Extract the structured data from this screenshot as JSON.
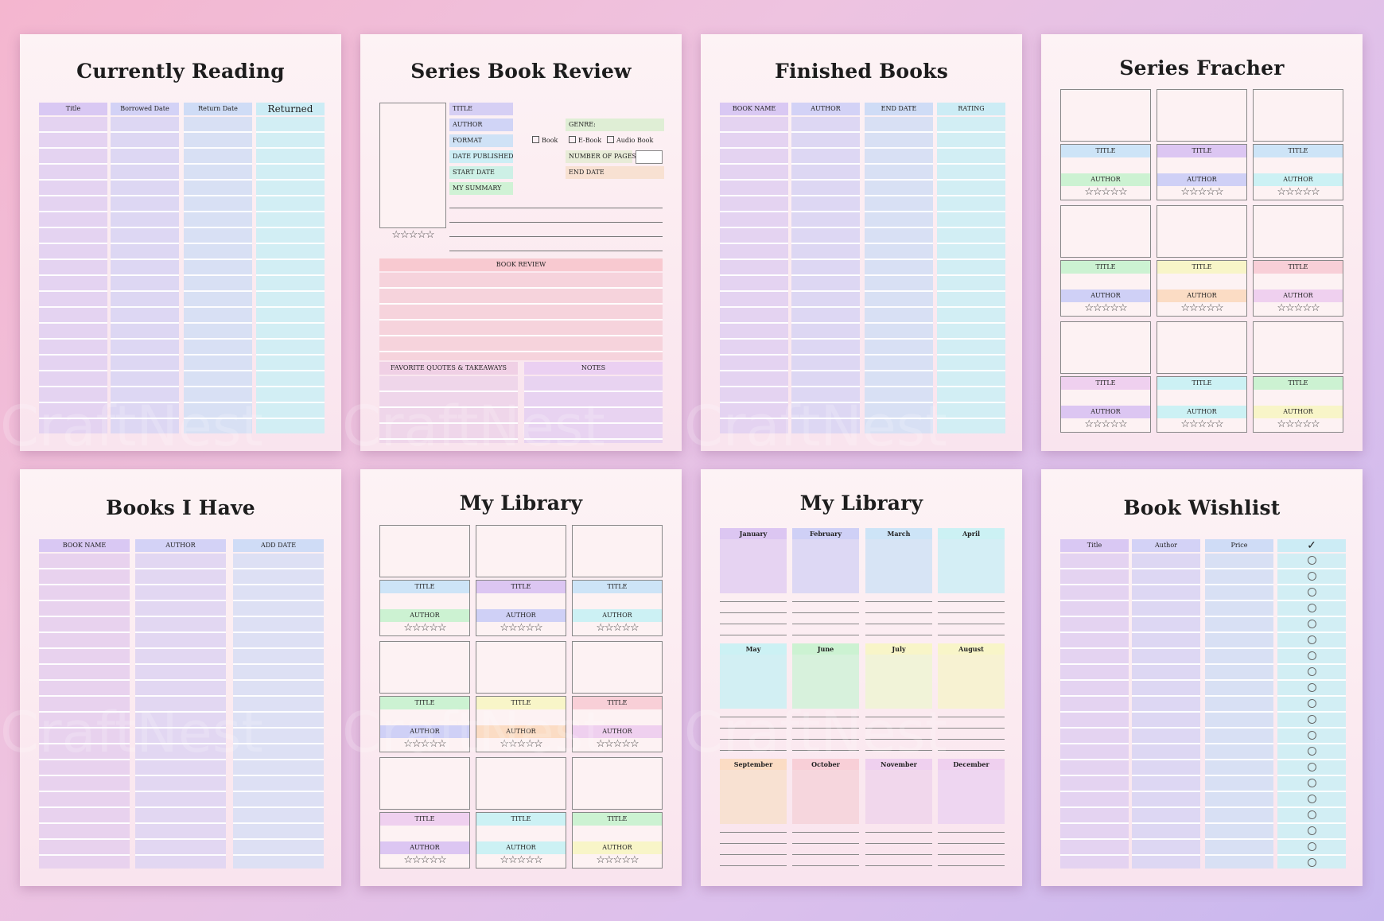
{
  "pages": {
    "currently_reading": {
      "title": "Currently Reading",
      "headers": [
        "Title",
        "Borrowed Date",
        "Return Date",
        "Returned"
      ]
    },
    "series_review": {
      "title": "Series Book Review",
      "fields": {
        "title": "TITLE",
        "author": "AUTHOR",
        "genre": "GENRE:",
        "format": "FORMAT",
        "book": "Book",
        "ebook": "E-Book",
        "audiobook": "Audio Book",
        "date_published": "DATE PUBLISHED",
        "number_of_pages": "NUMBER OF PAGES",
        "start_date": "START DATE",
        "end_date": "END DATE",
        "summary": "MY SUMMARY",
        "book_review": "BOOK REVIEW",
        "quotes": "FAVORITE QUOTES & TAKEAWAYS",
        "notes": "NOTES"
      },
      "stars": "☆☆☆☆☆"
    },
    "finished_books": {
      "title": "Finished Books",
      "headers": [
        "BOOK NAME",
        "AUTHOR",
        "END DATE",
        "RATING"
      ]
    },
    "series_fracher": {
      "title": "Series Fracher",
      "card_title": "TITLE",
      "card_author": "AUTHOR",
      "stars": "☆☆☆☆☆"
    },
    "books_i_have": {
      "title": "Books I Have",
      "headers": [
        "BOOK NAME",
        "AUTHOR",
        "ADD DATE"
      ]
    },
    "my_library_cards": {
      "title": "My Library",
      "card_title": "TITLE",
      "card_author": "AUTHOR",
      "stars": "☆☆☆☆☆"
    },
    "my_library_months": {
      "title": "My Library",
      "months": [
        "January",
        "February",
        "March",
        "April",
        "May",
        "June",
        "July",
        "August",
        "September",
        "October",
        "November",
        "December"
      ]
    },
    "book_wishlist": {
      "title": "Book Wishlist",
      "headers": [
        "Title",
        "Author",
        "Price",
        "✓"
      ]
    }
  },
  "watermark": "CraftNest",
  "colors": {
    "purple": "#dcc6f2",
    "lavender": "#cfd0f6",
    "blue": "#cde4f7",
    "cyan": "#ccf1f4",
    "green": "#ccf2d2",
    "yellow": "#f8f5c8",
    "orange": "#fbdcc4",
    "pink": "#f8cfd7",
    "mauve": "#efd0ef"
  }
}
